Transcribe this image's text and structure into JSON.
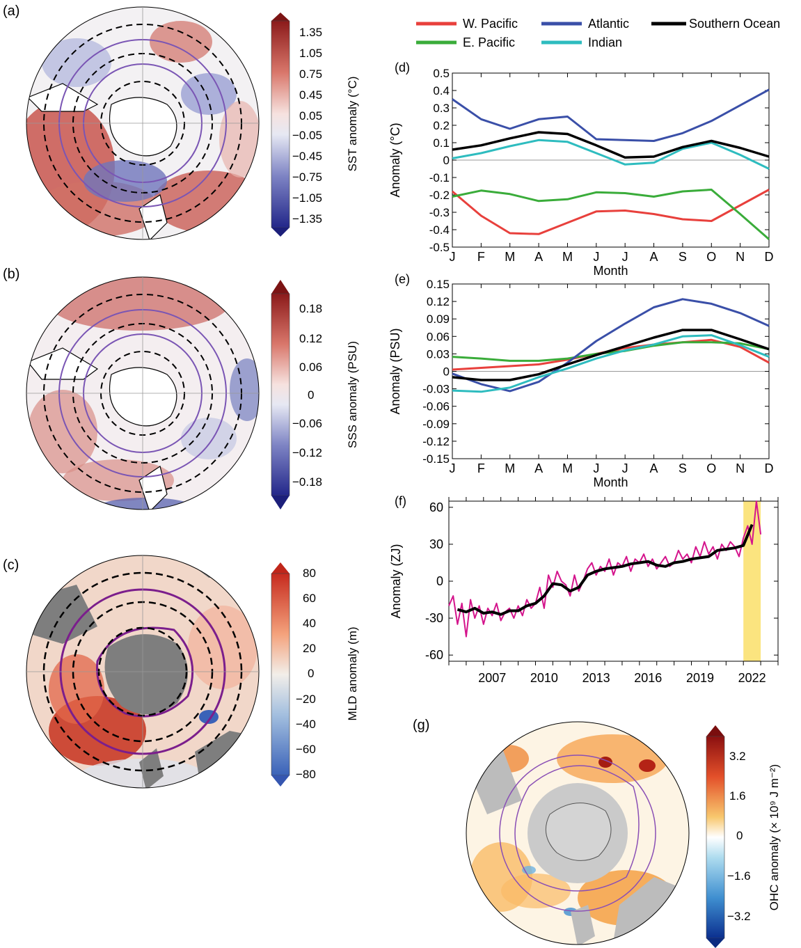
{
  "colors": {
    "wpac": "#e8403c",
    "epac": "#3aac3a",
    "atl": "#3a4fa8",
    "ind": "#2ebcbf",
    "so": "#000000",
    "ohc": "#d4148c",
    "highlight": "#fbe47f"
  },
  "panels": {
    "a": "(a)",
    "b": "(b)",
    "c": "(c)",
    "d": "(d)",
    "e": "(e)",
    "f": "(f)",
    "g": "(g)"
  },
  "colorbars": {
    "sst": {
      "label": "SST anomaly (°C)",
      "ticks": [
        "1.35",
        "1.05",
        "0.75",
        "0.45",
        "0.05",
        "−0.05",
        "−0.45",
        "−0.75",
        "−1.05",
        "−1.35"
      ]
    },
    "sss": {
      "label": "SSS anomaly (PSU)",
      "ticks": [
        "0.18",
        "0.12",
        "0.06",
        "0",
        "−0.06",
        "−0.12",
        "−0.18"
      ]
    },
    "mld": {
      "label": "MLD anomaly (m)",
      "ticks": [
        "80",
        "60",
        "40",
        "20",
        "0",
        "−20",
        "−40",
        "−60",
        "−80"
      ]
    },
    "ohc": {
      "label": "OHC anomaly (× 10⁹ J m⁻²)",
      "ticks": [
        "3.2",
        "1.6",
        "0",
        "−1.6",
        "−3.2"
      ]
    }
  },
  "legend": [
    "W. Pacific",
    "E. Pacific",
    "Atlantic",
    "Indian",
    "Southern Ocean"
  ],
  "chart_data": [
    {
      "panel": "d",
      "type": "line",
      "xlabel": "Month",
      "ylabel": "Anomaly (°C)",
      "categories": [
        "J",
        "F",
        "M",
        "A",
        "M",
        "J",
        "J",
        "A",
        "S",
        "O",
        "N",
        "D"
      ],
      "ylim": [
        -0.5,
        0.5
      ],
      "yticks": [
        "0.5",
        "0.4",
        "0.3",
        "0.2",
        "0.1",
        "0",
        "-0.1",
        "-0.2",
        "-0.3",
        "-0.4",
        "-0.5"
      ],
      "series": [
        {
          "name": "W. Pacific",
          "values": [
            -0.18,
            -0.32,
            -0.42,
            -0.425,
            -0.36,
            -0.295,
            -0.29,
            -0.31,
            -0.34,
            -0.35,
            -0.26,
            -0.17
          ]
        },
        {
          "name": "E. Pacific",
          "values": [
            -0.21,
            -0.175,
            -0.195,
            -0.235,
            -0.225,
            -0.185,
            -0.19,
            -0.21,
            -0.18,
            -0.17,
            -0.31,
            -0.455
          ]
        },
        {
          "name": "Atlantic",
          "values": [
            0.35,
            0.235,
            0.18,
            0.235,
            0.25,
            0.12,
            0.115,
            0.11,
            0.155,
            0.225,
            0.315,
            0.405
          ]
        },
        {
          "name": "Indian",
          "values": [
            0.01,
            0.04,
            0.08,
            0.115,
            0.105,
            0.04,
            -0.025,
            -0.015,
            0.065,
            0.1,
            0.03,
            -0.05
          ]
        },
        {
          "name": "Southern Ocean",
          "values": [
            0.06,
            0.085,
            0.125,
            0.16,
            0.15,
            0.085,
            0.015,
            0.02,
            0.075,
            0.11,
            0.07,
            0.02
          ]
        }
      ]
    },
    {
      "panel": "e",
      "type": "line",
      "xlabel": "Month",
      "ylabel": "Anomaly (PSU)",
      "categories": [
        "J",
        "F",
        "M",
        "A",
        "M",
        "J",
        "J",
        "A",
        "S",
        "O",
        "N",
        "D"
      ],
      "ylim": [
        -0.15,
        0.15
      ],
      "yticks": [
        "0.15",
        "0.12",
        "0.09",
        "0.06",
        "0.03",
        "0",
        "-0.03",
        "-0.06",
        "-0.09",
        "-0.12",
        "-0.15"
      ],
      "series": [
        {
          "name": "W. Pacific",
          "values": [
            0.003,
            0.006,
            0.009,
            0.012,
            0.02,
            0.03,
            0.04,
            0.046,
            0.05,
            0.054,
            0.042,
            0.015
          ]
        },
        {
          "name": "E. Pacific",
          "values": [
            0.025,
            0.022,
            0.018,
            0.018,
            0.022,
            0.03,
            0.035,
            0.044,
            0.05,
            0.05,
            0.048,
            0.038
          ]
        },
        {
          "name": "Atlantic",
          "values": [
            -0.004,
            -0.022,
            -0.034,
            -0.018,
            0.015,
            0.052,
            0.082,
            0.11,
            0.124,
            0.116,
            0.1,
            0.078
          ]
        },
        {
          "name": "Indian",
          "values": [
            -0.033,
            -0.035,
            -0.028,
            -0.01,
            0.005,
            0.022,
            0.036,
            0.046,
            0.06,
            0.062,
            0.045,
            0.025
          ]
        },
        {
          "name": "Southern Ocean",
          "values": [
            -0.01,
            -0.015,
            -0.015,
            -0.005,
            0.012,
            0.028,
            0.043,
            0.058,
            0.071,
            0.071,
            0.055,
            0.038
          ]
        }
      ]
    },
    {
      "panel": "f",
      "type": "line",
      "ylabel": "Anomaly (ZJ)",
      "xlim": [
        2005,
        2024
      ],
      "ylim": [
        -65,
        65
      ],
      "yticks": [
        "60",
        "30",
        "0",
        "-30",
        "-60"
      ],
      "xticks": [
        "2007",
        "2010",
        "2013",
        "2016",
        "2019",
        "2022"
      ],
      "highlight": [
        2022,
        2023
      ],
      "series": [
        {
          "name": "monthly",
          "x": [
            2005.0,
            2005.25,
            2005.5,
            2005.75,
            2006.0,
            2006.25,
            2006.5,
            2006.75,
            2007.0,
            2007.25,
            2007.5,
            2007.75,
            2008.0,
            2008.25,
            2008.5,
            2008.75,
            2009.0,
            2009.25,
            2009.5,
            2009.75,
            2010.0,
            2010.25,
            2010.5,
            2010.75,
            2011.0,
            2011.25,
            2011.5,
            2011.75,
            2012.0,
            2012.25,
            2012.5,
            2012.75,
            2013.0,
            2013.25,
            2013.5,
            2013.75,
            2014.0,
            2014.25,
            2014.5,
            2014.75,
            2015.0,
            2015.25,
            2015.5,
            2015.75,
            2016.0,
            2016.25,
            2016.5,
            2016.75,
            2017.0,
            2017.25,
            2017.5,
            2017.75,
            2018.0,
            2018.25,
            2018.5,
            2018.75,
            2019.0,
            2019.25,
            2019.5,
            2019.75,
            2020.0,
            2020.25,
            2020.5,
            2020.75,
            2021.0,
            2021.25,
            2021.5,
            2021.75,
            2022.0,
            2022.25,
            2022.5,
            2022.75,
            2023.0
          ],
          "values": [
            -20,
            -12,
            -35,
            -18,
            -45,
            -15,
            -30,
            -20,
            -35,
            -22,
            -28,
            -18,
            -32,
            -25,
            -22,
            -30,
            -20,
            -28,
            -15,
            -22,
            -18,
            -5,
            -22,
            5,
            -5,
            8,
            0,
            -3,
            -12,
            5,
            -8,
            0,
            10,
            15,
            5,
            12,
            8,
            18,
            5,
            15,
            12,
            20,
            8,
            18,
            15,
            22,
            12,
            18,
            10,
            15,
            20,
            12,
            15,
            25,
            18,
            22,
            15,
            28,
            20,
            32,
            22,
            28,
            18,
            30,
            25,
            32,
            28,
            20,
            35,
            45,
            30,
            65,
            38
          ]
        },
        {
          "name": "smoothed",
          "x": [
            2005.5,
            2006.0,
            2006.5,
            2007.0,
            2007.5,
            2008.0,
            2008.5,
            2009.0,
            2009.5,
            2010.0,
            2010.5,
            2011.0,
            2011.5,
            2012.0,
            2012.5,
            2013.0,
            2013.5,
            2014.0,
            2014.5,
            2015.0,
            2015.5,
            2016.0,
            2016.5,
            2017.0,
            2017.5,
            2018.0,
            2018.5,
            2019.0,
            2019.5,
            2020.0,
            2020.5,
            2021.0,
            2021.5,
            2022.0,
            2022.5
          ],
          "values": [
            -23,
            -25,
            -22,
            -26,
            -25,
            -27,
            -24,
            -24,
            -20,
            -18,
            -12,
            -2,
            -3,
            -8,
            -5,
            5,
            8,
            10,
            11,
            12,
            14,
            15,
            16,
            13,
            12,
            15,
            16,
            18,
            19,
            20,
            25,
            26,
            27,
            29,
            46
          ]
        }
      ]
    }
  ]
}
